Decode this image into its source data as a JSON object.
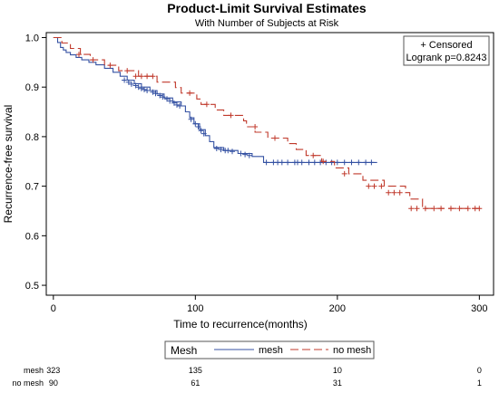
{
  "chart_data": {
    "type": "line",
    "title": "Product-Limit Survival Estimates",
    "subtitle": "With Number of Subjects at Risk",
    "xlabel": "Time to recurrence(months)",
    "ylabel": "Recurrence-free survival",
    "xlim": [
      -5,
      310
    ],
    "ylim": [
      0.48,
      1.01
    ],
    "xticks": [
      0,
      100,
      200,
      300
    ],
    "yticks": [
      0.5,
      0.6,
      0.7,
      0.8,
      0.9,
      1.0
    ],
    "xtick_labels": [
      "0",
      "100",
      "200",
      "300"
    ],
    "ytick_labels": [
      "0.5",
      "0.6",
      "0.7",
      "0.8",
      "0.9",
      "1.0"
    ],
    "inset": {
      "line1": "+ Censored",
      "line2": "Logrank p=0.8243"
    },
    "legend": {
      "title": "Mesh",
      "placement": "bottom"
    },
    "series": [
      {
        "name": "mesh",
        "color": "#3552a3",
        "dash": "solid",
        "steps": [
          [
            0,
            1.0
          ],
          [
            3,
            0.99
          ],
          [
            5,
            0.98
          ],
          [
            7,
            0.975
          ],
          [
            9,
            0.97
          ],
          [
            12,
            0.965
          ],
          [
            16,
            0.96
          ],
          [
            20,
            0.955
          ],
          [
            25,
            0.95
          ],
          [
            30,
            0.945
          ],
          [
            36,
            0.938
          ],
          [
            42,
            0.93
          ],
          [
            47,
            0.922
          ],
          [
            52,
            0.914
          ],
          [
            57,
            0.907
          ],
          [
            62,
            0.9
          ],
          [
            68,
            0.893
          ],
          [
            73,
            0.886
          ],
          [
            78,
            0.878
          ],
          [
            84,
            0.87
          ],
          [
            90,
            0.862
          ],
          [
            93,
            0.85
          ],
          [
            96,
            0.838
          ],
          [
            99,
            0.826
          ],
          [
            103,
            0.814
          ],
          [
            107,
            0.802
          ],
          [
            110,
            0.79
          ],
          [
            113,
            0.778
          ],
          [
            120,
            0.772
          ],
          [
            130,
            0.766
          ],
          [
            140,
            0.76
          ],
          [
            148,
            0.748
          ],
          [
            228,
            0.748
          ]
        ],
        "censored": [
          [
            50,
            0.914
          ],
          [
            53,
            0.91
          ],
          [
            55,
            0.906
          ],
          [
            58,
            0.903
          ],
          [
            60,
            0.9
          ],
          [
            62,
            0.897
          ],
          [
            64,
            0.895
          ],
          [
            66,
            0.893
          ],
          [
            70,
            0.89
          ],
          [
            72,
            0.887
          ],
          [
            75,
            0.883
          ],
          [
            77,
            0.88
          ],
          [
            80,
            0.876
          ],
          [
            82,
            0.872
          ],
          [
            85,
            0.868
          ],
          [
            87,
            0.864
          ],
          [
            89,
            0.862
          ],
          [
            97,
            0.835
          ],
          [
            100,
            0.826
          ],
          [
            102,
            0.82
          ],
          [
            104,
            0.812
          ],
          [
            106,
            0.806
          ],
          [
            115,
            0.776
          ],
          [
            118,
            0.774
          ],
          [
            121,
            0.772
          ],
          [
            123,
            0.772
          ],
          [
            126,
            0.77
          ],
          [
            132,
            0.766
          ],
          [
            135,
            0.764
          ],
          [
            138,
            0.762
          ],
          [
            150,
            0.748
          ],
          [
            155,
            0.748
          ],
          [
            158,
            0.748
          ],
          [
            161,
            0.748
          ],
          [
            165,
            0.748
          ],
          [
            170,
            0.748
          ],
          [
            172,
            0.748
          ],
          [
            175,
            0.748
          ],
          [
            180,
            0.748
          ],
          [
            184,
            0.748
          ],
          [
            188,
            0.748
          ],
          [
            192,
            0.748
          ],
          [
            196,
            0.748
          ],
          [
            200,
            0.748
          ],
          [
            205,
            0.748
          ],
          [
            210,
            0.748
          ],
          [
            215,
            0.748
          ],
          [
            220,
            0.748
          ],
          [
            224,
            0.748
          ]
        ]
      },
      {
        "name": "no mesh",
        "color": "#c0392b",
        "dash": "long",
        "steps": [
          [
            0,
            1.0
          ],
          [
            6,
            0.989
          ],
          [
            12,
            0.978
          ],
          [
            19,
            0.966
          ],
          [
            26,
            0.955
          ],
          [
            36,
            0.944
          ],
          [
            46,
            0.933
          ],
          [
            60,
            0.922
          ],
          [
            73,
            0.91
          ],
          [
            86,
            0.899
          ],
          [
            90,
            0.888
          ],
          [
            101,
            0.876
          ],
          [
            104,
            0.865
          ],
          [
            114,
            0.854
          ],
          [
            120,
            0.843
          ],
          [
            134,
            0.832
          ],
          [
            136,
            0.82
          ],
          [
            142,
            0.809
          ],
          [
            151,
            0.797
          ],
          [
            165,
            0.786
          ],
          [
            171,
            0.774
          ],
          [
            178,
            0.762
          ],
          [
            189,
            0.75
          ],
          [
            198,
            0.737
          ],
          [
            208,
            0.725
          ],
          [
            218,
            0.712
          ],
          [
            233,
            0.7
          ],
          [
            248,
            0.687
          ],
          [
            251,
            0.674
          ],
          [
            260,
            0.655
          ],
          [
            302,
            0.655
          ]
        ],
        "censored": [
          [
            18,
            0.966
          ],
          [
            28,
            0.955
          ],
          [
            40,
            0.944
          ],
          [
            52,
            0.933
          ],
          [
            58,
            0.922
          ],
          [
            62,
            0.922
          ],
          [
            66,
            0.922
          ],
          [
            70,
            0.922
          ],
          [
            96,
            0.888
          ],
          [
            108,
            0.865
          ],
          [
            125,
            0.843
          ],
          [
            142,
            0.82
          ],
          [
            156,
            0.797
          ],
          [
            183,
            0.762
          ],
          [
            190,
            0.75
          ],
          [
            205,
            0.725
          ],
          [
            222,
            0.7
          ],
          [
            226,
            0.7
          ],
          [
            231,
            0.7
          ],
          [
            236,
            0.687
          ],
          [
            240,
            0.687
          ],
          [
            244,
            0.687
          ],
          [
            252,
            0.655
          ],
          [
            256,
            0.655
          ],
          [
            262,
            0.655
          ],
          [
            268,
            0.655
          ],
          [
            273,
            0.655
          ],
          [
            280,
            0.655
          ],
          [
            286,
            0.655
          ],
          [
            292,
            0.655
          ],
          [
            297,
            0.655
          ],
          [
            300,
            0.655
          ]
        ]
      }
    ],
    "risk_table": {
      "times": [
        0,
        100,
        200,
        300
      ],
      "rows": [
        {
          "label": "mesh",
          "values": [
            "323",
            "135",
            "10",
            "0"
          ]
        },
        {
          "label": "no mesh",
          "values": [
            "90",
            "61",
            "31",
            "1"
          ]
        }
      ]
    }
  }
}
